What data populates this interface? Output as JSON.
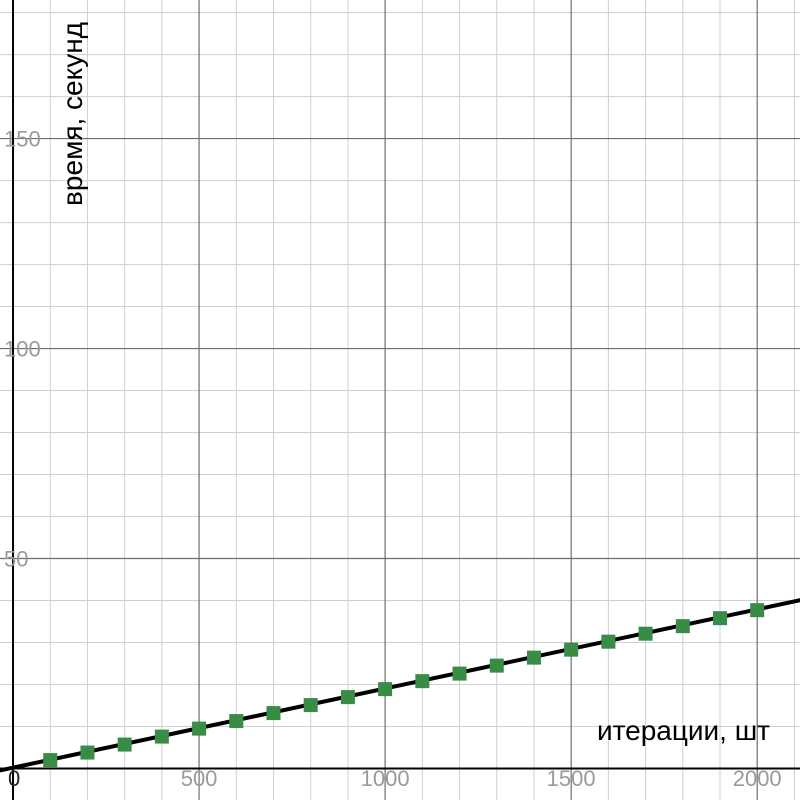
{
  "chart_data": {
    "type": "scatter",
    "title": "",
    "xlabel": "итерации, шт",
    "ylabel": "время, секунд",
    "origin_label": "0",
    "xlim": [
      -35,
      2115
    ],
    "ylim": [
      -7.5,
      183
    ],
    "x_major_ticks": [
      500,
      1000,
      1500,
      2000
    ],
    "x_minor_step": 100,
    "y_major_ticks": [
      50,
      100,
      150
    ],
    "y_minor_step": 10,
    "grid": true,
    "series": [
      {
        "marker": "square",
        "color": "#388c46",
        "x": [
          100,
          200,
          300,
          400,
          500,
          600,
          700,
          800,
          900,
          1000,
          1100,
          1200,
          1300,
          1400,
          1500,
          1600,
          1700,
          1800,
          1900,
          2000
        ],
        "y": [
          2.0,
          3.8,
          5.7,
          7.6,
          9.5,
          11.3,
          13.2,
          15.1,
          17.0,
          18.9,
          20.8,
          22.6,
          24.5,
          26.4,
          28.3,
          30.2,
          32.1,
          33.9,
          35.8,
          37.7
        ]
      }
    ],
    "trendline": {
      "color": "#000000",
      "slope": 0.01885,
      "intercept": 0.2
    }
  }
}
